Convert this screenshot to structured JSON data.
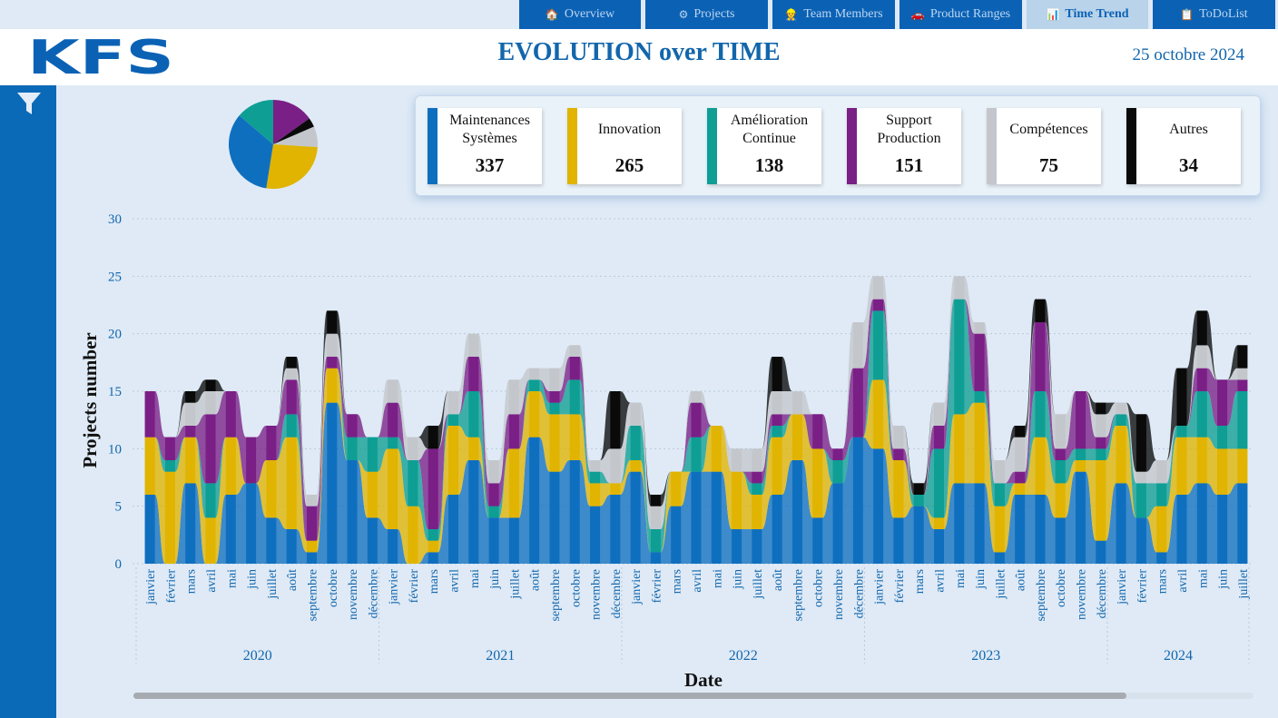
{
  "nav": {
    "tabs": [
      {
        "label": "Overview",
        "icon": "house-icon",
        "active": false
      },
      {
        "label": "Projects",
        "icon": "gears-icon",
        "active": false
      },
      {
        "label": "Team Members",
        "icon": "worker-icon",
        "active": false
      },
      {
        "label": "Product Ranges",
        "icon": "car-icon",
        "active": false
      },
      {
        "label": "Time Trend",
        "icon": "bar-chart-icon",
        "active": true
      },
      {
        "label": "ToDoList",
        "icon": "clipboard-icon",
        "active": false
      }
    ]
  },
  "header": {
    "logo_text": "KFS",
    "title": "EVOLUTION over TIME",
    "date": "25 octobre 2024"
  },
  "colors": {
    "maint": "#0f6fbf",
    "innov": "#e0b400",
    "amel": "#0e9e94",
    "support": "#7a1f86",
    "comp": "#c3c7cc",
    "autres": "#0a0a0a"
  },
  "cards": [
    {
      "label": "Maintenances Systèmes",
      "value": "337",
      "color": "#0f6fbf"
    },
    {
      "label": "Innovation",
      "value": "265",
      "color": "#e0b400"
    },
    {
      "label": "Amélioration Continue",
      "value": "138",
      "color": "#0e9e94"
    },
    {
      "label": "Support Production",
      "value": "151",
      "color": "#7a1f86"
    },
    {
      "label": "Compétences",
      "value": "75",
      "color": "#c3c7cc"
    },
    {
      "label": "Autres",
      "value": "34",
      "color": "#0a0a0a"
    }
  ],
  "pie_data": {
    "type": "pie",
    "slices": [
      {
        "category": "Support Production",
        "value": 151,
        "color": "#7a1f86"
      },
      {
        "category": "Autres",
        "value": 34,
        "color": "#0a0a0a"
      },
      {
        "category": "Compétences",
        "value": 75,
        "color": "#c3c7cc"
      },
      {
        "category": "Innovation",
        "value": 265,
        "color": "#e0b400"
      },
      {
        "category": "Maintenances Systèmes",
        "value": 337,
        "color": "#0f6fbf"
      },
      {
        "category": "Amélioration Continue",
        "value": 138,
        "color": "#0e9e94"
      }
    ]
  },
  "chart_data": {
    "type": "bar",
    "xlabel": "Date",
    "ylabel": "Projects number",
    "ylim": [
      0,
      30
    ],
    "yticks": [
      0,
      5,
      10,
      15,
      20,
      25,
      30
    ],
    "grid": true,
    "years": [
      {
        "label": "2020",
        "months": 12
      },
      {
        "label": "2021",
        "months": 12
      },
      {
        "label": "2022",
        "months": 12
      },
      {
        "label": "2023",
        "months": 12
      },
      {
        "label": "2024",
        "months": 7
      }
    ],
    "categories": [
      "janvier",
      "février",
      "mars",
      "avril",
      "mai",
      "juin",
      "juillet",
      "août",
      "septembre",
      "octobre",
      "novembre",
      "décembre",
      "janvier",
      "février",
      "mars",
      "avril",
      "mai",
      "juin",
      "juillet",
      "août",
      "septembre",
      "octobre",
      "novembre",
      "décembre",
      "janvier",
      "février",
      "mars",
      "avril",
      "mai",
      "juin",
      "juillet",
      "août",
      "septembre",
      "octobre",
      "novembre",
      "décembre",
      "janvier",
      "février",
      "mars",
      "avril",
      "mai",
      "juin",
      "juillet",
      "août",
      "septembre",
      "octobre",
      "novembre",
      "décembre",
      "janvier",
      "février",
      "mars",
      "avril",
      "mai",
      "juin",
      "juillet"
    ],
    "series": [
      {
        "name": "Maintenances Systèmes",
        "color": "#0f6fbf",
        "values": [
          6,
          0,
          7,
          0,
          6,
          7,
          4,
          3,
          1,
          14,
          9,
          4,
          3,
          0,
          1,
          6,
          9,
          4,
          4,
          11,
          8,
          9,
          5,
          6,
          8,
          1,
          5,
          8,
          8,
          3,
          3,
          6,
          9,
          4,
          7,
          11,
          10,
          4,
          5,
          3,
          7,
          7,
          1,
          6,
          6,
          4,
          8,
          2,
          7,
          4,
          1,
          6,
          7,
          6,
          7
        ]
      },
      {
        "name": "Innovation",
        "color": "#e0b400",
        "values": [
          5,
          8,
          4,
          4,
          5,
          0,
          5,
          8,
          1,
          3,
          0,
          4,
          7,
          5,
          1,
          6,
          2,
          0,
          6,
          4,
          5,
          4,
          2,
          1,
          1,
          0,
          3,
          0,
          4,
          5,
          3,
          5,
          4,
          6,
          0,
          0,
          6,
          5,
          0,
          1,
          6,
          7,
          4,
          1,
          5,
          3,
          1,
          7,
          5,
          0,
          4,
          5,
          4,
          4,
          3
        ]
      },
      {
        "name": "Amélioration Continue",
        "color": "#0e9e94",
        "values": [
          0,
          1,
          0,
          3,
          0,
          0,
          0,
          2,
          0,
          0,
          2,
          3,
          1,
          4,
          1,
          1,
          4,
          1,
          0,
          1,
          1,
          3,
          1,
          0,
          3,
          2,
          0,
          3,
          0,
          0,
          1,
          1,
          0,
          0,
          2,
          0,
          6,
          0,
          1,
          6,
          10,
          1,
          2,
          0,
          4,
          2,
          1,
          1,
          1,
          3,
          2,
          1,
          4,
          2,
          5
        ]
      },
      {
        "name": "Support Production",
        "color": "#7a1f86",
        "values": [
          4,
          2,
          1,
          6,
          4,
          4,
          3,
          3,
          3,
          1,
          2,
          0,
          3,
          0,
          7,
          0,
          3,
          2,
          3,
          0,
          1,
          2,
          0,
          0,
          0,
          0,
          0,
          3,
          0,
          0,
          1,
          1,
          0,
          3,
          1,
          6,
          1,
          1,
          0,
          2,
          0,
          5,
          0,
          1,
          6,
          1,
          5,
          1,
          0,
          0,
          0,
          0,
          2,
          4,
          1
        ]
      },
      {
        "name": "Compétences",
        "color": "#c3c7cc",
        "values": [
          0,
          0,
          2,
          2,
          0,
          0,
          0,
          1,
          1,
          2,
          0,
          0,
          2,
          2,
          0,
          2,
          2,
          2,
          3,
          1,
          2,
          1,
          1,
          3,
          2,
          2,
          0,
          1,
          0,
          2,
          2,
          2,
          2,
          0,
          0,
          4,
          2,
          2,
          0,
          2,
          2,
          1,
          2,
          3,
          0,
          3,
          0,
          2,
          1,
          1,
          2,
          0,
          2,
          0,
          1
        ]
      },
      {
        "name": "Autres",
        "color": "#0a0a0a",
        "values": [
          0,
          0,
          1,
          1,
          0,
          0,
          0,
          1,
          0,
          2,
          0,
          0,
          0,
          0,
          2,
          0,
          0,
          0,
          0,
          0,
          0,
          0,
          0,
          5,
          0,
          1,
          0,
          0,
          0,
          0,
          0,
          3,
          0,
          0,
          0,
          0,
          0,
          0,
          1,
          0,
          0,
          0,
          0,
          1,
          2,
          0,
          0,
          1,
          0,
          5,
          0,
          5,
          3,
          0,
          2
        ]
      }
    ]
  }
}
